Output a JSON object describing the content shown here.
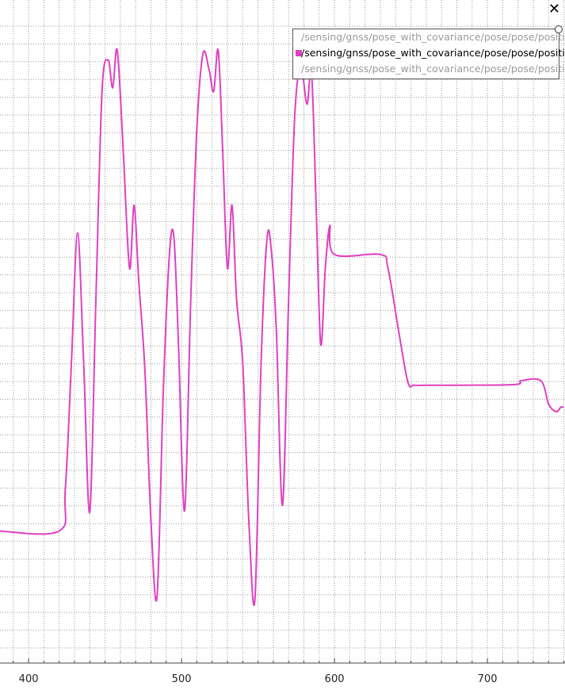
{
  "window": {
    "close_glyph": "✕"
  },
  "colors": {
    "series_y": "#e040c0",
    "grid": "#9a9a9a",
    "axis": "#444444"
  },
  "chart_data": {
    "type": "line",
    "title": "",
    "xlabel": "",
    "ylabel": "",
    "xlim": [
      380,
      750
    ],
    "ylim": [
      0,
      1
    ],
    "x_ticks": [
      400,
      500,
      600,
      700
    ],
    "grid": true,
    "legend_position": "top-right",
    "legend": [
      {
        "label": "/sensing/gnss/pose_with_covariance/pose/pose/position/x",
        "visible": false
      },
      {
        "label": "/sensing/gnss/pose_with_covariance/pose/pose/position/y",
        "visible": true,
        "color": "#e040c0"
      },
      {
        "label": "/sensing/gnss/pose_with_covariance/pose/pose/position/z",
        "visible": false
      }
    ],
    "series": [
      {
        "name": "/sensing/gnss/pose_with_covariance/pose/pose/position/y",
        "x": [
          380,
          420,
          424,
          428,
          432,
          436,
          440,
          444,
          448,
          452,
          455,
          458,
          462,
          466,
          469,
          472,
          476,
          480,
          484,
          488,
          492,
          495,
          498,
          502,
          506,
          510,
          514,
          518,
          521,
          524,
          527,
          530,
          533,
          536,
          540,
          544,
          548,
          552,
          556,
          559,
          562,
          566,
          570,
          574,
          578,
          582,
          585,
          588,
          591,
          594,
          597,
          600,
          630,
          635,
          642,
          648,
          652,
          660,
          680,
          718,
          722,
          735,
          740,
          745,
          748,
          750
        ],
        "y": [
          0.184,
          0.184,
          0.25,
          0.45,
          0.656,
          0.45,
          0.214,
          0.55,
          0.88,
          0.93,
          0.886,
          0.945,
          0.78,
          0.6,
          0.7,
          0.58,
          0.44,
          0.2,
          0.08,
          0.4,
          0.62,
          0.65,
          0.48,
          0.216,
          0.55,
          0.82,
          0.94,
          0.915,
          0.88,
          0.945,
          0.78,
          0.6,
          0.7,
          0.55,
          0.45,
          0.2,
          0.076,
          0.45,
          0.65,
          0.62,
          0.5,
          0.225,
          0.55,
          0.84,
          0.92,
          0.86,
          0.91,
          0.7,
          0.48,
          0.6,
          0.668,
          0.622,
          0.622,
          0.6,
          0.5,
          0.42,
          0.415,
          0.415,
          0.415,
          0.416,
          0.422,
          0.422,
          0.385,
          0.373,
          0.38,
          0.38
        ]
      }
    ]
  }
}
